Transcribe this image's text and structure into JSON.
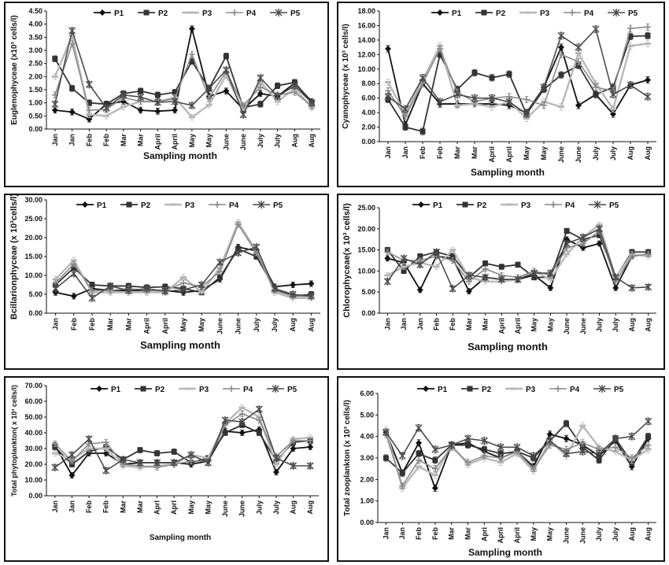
{
  "legend": [
    "P1",
    "P2",
    "P3",
    "P4",
    "P5"
  ],
  "series_colors": [
    "#111111",
    "#333333",
    "#b8b8b8",
    "#8a8a8a",
    "#4a4a4a"
  ],
  "chart_data": [
    {
      "id": "euglenophyceae",
      "type": "line",
      "ylabel": "Euglenophyceae (x10³ cells/l)",
      "xlabel": "Sampling month",
      "ylim": [
        0,
        4.5
      ],
      "yticks": [
        "0.00",
        "0.50",
        "1.00",
        "1.50",
        "2.00",
        "2.50",
        "3.00",
        "3.50",
        "4.00",
        "4.50"
      ],
      "categories": [
        "Jan",
        "Jan",
        "Feb",
        "Feb",
        "Mar",
        "Mar",
        "April",
        "April",
        "May",
        "May",
        "June",
        "June",
        "July",
        "July",
        "Aug",
        "Aug"
      ],
      "series": [
        {
          "name": "P1",
          "values": [
            0.72,
            0.65,
            0.38,
            0.95,
            1.05,
            0.72,
            0.68,
            0.72,
            3.82,
            1.25,
            1.45,
            0.75,
            1.35,
            1.25,
            1.75,
            1.05
          ]
        },
        {
          "name": "P2",
          "values": [
            2.68,
            1.55,
            1.0,
            0.95,
            1.35,
            1.45,
            1.3,
            1.4,
            2.58,
            1.55,
            2.78,
            0.82,
            0.95,
            1.65,
            1.78,
            1.0
          ]
        },
        {
          "name": "P3",
          "values": [
            2.0,
            3.55,
            0.55,
            0.5,
            0.85,
            1.05,
            1.05,
            1.2,
            0.45,
            0.92,
            2.05,
            0.7,
            1.8,
            1.05,
            1.55,
            0.82
          ]
        },
        {
          "name": "P4",
          "values": [
            1.3,
            3.25,
            0.72,
            0.75,
            1.2,
            1.05,
            1.05,
            1.15,
            2.85,
            1.18,
            2.2,
            0.9,
            1.6,
            1.3,
            1.4,
            0.88
          ]
        },
        {
          "name": "P5",
          "values": [
            0.95,
            3.75,
            1.7,
            0.8,
            1.3,
            1.22,
            1.02,
            1.05,
            0.9,
            1.55,
            2.25,
            0.55,
            1.95,
            1.25,
            1.65,
            1.0
          ]
        }
      ]
    },
    {
      "id": "cyanophyceae",
      "type": "line",
      "ylabel": "Cyanophyceae (x 10³ cells/l)",
      "xlabel": "Sampling month",
      "ylim": [
        0,
        18
      ],
      "yticks": [
        "0.00",
        "2.00",
        "4.00",
        "6.00",
        "8.00",
        "10.00",
        "12.00",
        "14.00",
        "16.00",
        "18.00"
      ],
      "categories": [
        "Jan",
        "Jan",
        "Feb",
        "Feb",
        "Mar",
        "Mar",
        "April",
        "April",
        "May",
        "May",
        "June",
        "June",
        "July",
        "July",
        "Aug",
        "Aug"
      ],
      "series": [
        {
          "name": "P1",
          "values": [
            12.8,
            2.3,
            8.0,
            5.2,
            5.2,
            5.2,
            5.2,
            5.0,
            4.0,
            7.5,
            13.0,
            5.0,
            6.5,
            3.8,
            7.8,
            8.5
          ]
        },
        {
          "name": "P2",
          "values": [
            5.8,
            2.0,
            1.4,
            12.0,
            7.2,
            9.5,
            8.8,
            9.3,
            3.8,
            7.2,
            9.2,
            10.5,
            6.5,
            7.5,
            14.5,
            14.6
          ]
        },
        {
          "name": "P3",
          "values": [
            8.2,
            3.8,
            8.5,
            13.2,
            5.0,
            5.2,
            4.8,
            5.5,
            3.2,
            5.5,
            4.8,
            12.2,
            8.0,
            4.5,
            13.2,
            13.5
          ]
        },
        {
          "name": "P4",
          "values": [
            7.0,
            3.5,
            8.0,
            12.8,
            6.8,
            5.5,
            6.0,
            6.2,
            5.8,
            5.0,
            12.0,
            11.0,
            7.5,
            7.0,
            15.6,
            15.8
          ]
        },
        {
          "name": "P5",
          "values": [
            6.2,
            4.5,
            8.8,
            5.5,
            6.5,
            6.0,
            6.0,
            5.5,
            3.8,
            7.5,
            14.6,
            13.0,
            15.5,
            6.5,
            7.8,
            6.2
          ]
        }
      ]
    },
    {
      "id": "bacillariophyceae",
      "type": "line",
      "ylabel": "Bcillarionphyceae (x 10³cells/l)",
      "xlabel": "Sampling month",
      "ylim": [
        0,
        30
      ],
      "yticks": [
        "0.00",
        "5.00",
        "10.00",
        "15.00",
        "20.00",
        "25.00",
        "30.00"
      ],
      "categories": [
        "Jan",
        "Feb",
        "Feb",
        "Mar",
        "Mar",
        "April",
        "April",
        "May",
        "May",
        "June",
        "June",
        "July",
        "July",
        "Aug",
        "Aug"
      ],
      "series": [
        {
          "name": "P1",
          "values": [
            5.5,
            4.5,
            6.5,
            6.0,
            6.0,
            6.0,
            6.0,
            5.5,
            6.0,
            9.0,
            17.5,
            16.5,
            7.0,
            7.5,
            7.8
          ]
        },
        {
          "name": "P2",
          "values": [
            7.5,
            12.0,
            7.5,
            7.2,
            7.2,
            6.8,
            7.0,
            6.5,
            5.5,
            9.5,
            17.0,
            15.0,
            6.5,
            4.5,
            5.0
          ]
        },
        {
          "name": "P3",
          "values": [
            9.0,
            14.0,
            5.5,
            5.5,
            5.5,
            5.5,
            5.5,
            9.5,
            5.5,
            12.0,
            24.0,
            16.5,
            5.5,
            4.0,
            4.0
          ]
        },
        {
          "name": "P4",
          "values": [
            8.0,
            13.0,
            6.0,
            6.0,
            6.5,
            6.0,
            6.0,
            8.0,
            7.0,
            11.0,
            23.5,
            16.0,
            6.0,
            4.5,
            4.5
          ]
        },
        {
          "name": "P5",
          "values": [
            6.5,
            10.5,
            4.0,
            7.2,
            6.0,
            6.5,
            5.8,
            6.2,
            7.5,
            13.5,
            16.0,
            17.5,
            6.5,
            5.0,
            4.5
          ]
        }
      ]
    },
    {
      "id": "chlorophyceae",
      "type": "line",
      "ylabel": "Chlorophyceae(x 10³ cells/l)",
      "xlabel": "Sampling month",
      "ylim": [
        0,
        25
      ],
      "yticks": [
        "0.00",
        "5.00",
        "10.00",
        "15.00",
        "20.00",
        "25.00"
      ],
      "categories": [
        "Jan",
        "Jan",
        "Jan",
        "Feb",
        "Feb",
        "Mar",
        "Mar",
        "April",
        "April",
        "May",
        "May",
        "June",
        "June",
        "July",
        "July",
        "Aug",
        "Aug"
      ],
      "series": [
        {
          "name": "P1",
          "values": [
            13.0,
            12.0,
            5.5,
            13.5,
            13.0,
            5.2,
            8.5,
            8.0,
            8.0,
            9.0,
            6.0,
            17.5,
            15.5,
            16.5,
            6.0,
            13.5,
            14.0
          ]
        },
        {
          "name": "P2",
          "values": [
            15.0,
            10.0,
            13.5,
            14.5,
            13.5,
            8.5,
            11.8,
            11.0,
            11.5,
            8.5,
            8.5,
            19.5,
            17.5,
            18.5,
            8.5,
            14.5,
            14.5
          ]
        },
        {
          "name": "P3",
          "values": [
            9.0,
            11.0,
            12.0,
            11.0,
            15.0,
            8.5,
            7.5,
            7.5,
            8.0,
            10.0,
            8.0,
            14.0,
            18.0,
            21.0,
            8.5,
            14.0,
            13.5
          ]
        },
        {
          "name": "P4",
          "values": [
            14.5,
            12.5,
            12.5,
            13.5,
            12.5,
            7.5,
            10.5,
            9.0,
            8.5,
            10.0,
            9.0,
            15.5,
            16.5,
            19.5,
            7.5,
            13.5,
            14.0
          ]
        },
        {
          "name": "P5",
          "values": [
            7.5,
            13.0,
            11.5,
            14.5,
            5.8,
            9.0,
            8.5,
            8.0,
            8.0,
            9.5,
            9.5,
            16.5,
            18.0,
            20.0,
            8.5,
            6.0,
            6.2
          ]
        }
      ]
    },
    {
      "id": "total_phytoplankton",
      "type": "line",
      "ylabel": "Total phytoplankton( x 10³ cells/l)",
      "xlabel": "Sampling month",
      "ylim": [
        0,
        70
      ],
      "yticks": [
        "0.00",
        "10.00",
        "20.00",
        "30.00",
        "40.00",
        "50.00",
        "60.00",
        "70.00"
      ],
      "categories": [
        "Jan",
        "Jan",
        "Feb",
        "Feb",
        "Mar",
        "Mar",
        "Aprl",
        "Aprl",
        "May",
        "May",
        "June",
        "June",
        "July",
        "July",
        "Aug",
        "Aug"
      ],
      "series": [
        {
          "name": "P1",
          "values": [
            32,
            13,
            27,
            27,
            20,
            21,
            21,
            21,
            20,
            22,
            41,
            40,
            42,
            15,
            30,
            31
          ]
        },
        {
          "name": "P2",
          "values": [
            31,
            20,
            28,
            31,
            23,
            29,
            27,
            28,
            21,
            24,
            40,
            45,
            40,
            22,
            34,
            35
          ]
        },
        {
          "name": "P3",
          "values": [
            27,
            23,
            30,
            30,
            19,
            18,
            19,
            20,
            26,
            24,
            46,
            56,
            50,
            20,
            36,
            37
          ]
        },
        {
          "name": "P4",
          "values": [
            33,
            22,
            33,
            34,
            20,
            19,
            18,
            20,
            22,
            22,
            45,
            52,
            48,
            25,
            35,
            35
          ]
        },
        {
          "name": "P5",
          "values": [
            18,
            26,
            36,
            16,
            23,
            21,
            21,
            21,
            26,
            21,
            48,
            47,
            55,
            24,
            19,
            19
          ]
        }
      ]
    },
    {
      "id": "total_zooplankton",
      "type": "line",
      "ylabel": "Total zooplankton (x 10³ cells/l)",
      "xlabel": "Sampling month",
      "ylim": [
        0,
        6
      ],
      "yticks": [
        "0.00",
        "1.00",
        "2.00",
        "3.00",
        "4.00",
        "5.00",
        "6.00"
      ],
      "categories": [
        "Jan",
        "Jan",
        "Feb",
        "Feb",
        "Mar",
        "Mar",
        "Apri",
        "April",
        "April",
        "May",
        "May",
        "June",
        "June",
        "July",
        "July",
        "Aug",
        "Aug"
      ],
      "series": [
        {
          "name": "P1",
          "values": [
            4.2,
            2.3,
            3.7,
            1.6,
            3.6,
            3.7,
            3.3,
            3.0,
            3.3,
            2.6,
            4.1,
            3.9,
            3.6,
            3.1,
            3.8,
            2.6,
            3.9
          ]
        },
        {
          "name": "P2",
          "values": [
            3.0,
            2.3,
            3.2,
            2.9,
            3.6,
            3.6,
            3.4,
            3.2,
            3.3,
            3.0,
            3.8,
            4.6,
            3.5,
            2.9,
            3.9,
            2.8,
            4.0
          ]
        },
        {
          "name": "P3",
          "values": [
            4.3,
            1.6,
            2.6,
            2.2,
            3.6,
            2.7,
            3.0,
            2.8,
            3.2,
            2.4,
            3.8,
            3.1,
            4.5,
            3.5,
            3.3,
            2.9,
            3.4
          ]
        },
        {
          "name": "P4",
          "values": [
            4.1,
            1.7,
            2.9,
            2.5,
            3.5,
            2.8,
            3.1,
            3.0,
            3.3,
            2.5,
            3.6,
            3.4,
            3.7,
            3.4,
            3.5,
            3.0,
            3.6
          ]
        },
        {
          "name": "P5",
          "values": [
            4.2,
            3.1,
            4.4,
            3.4,
            3.6,
            3.9,
            3.8,
            3.5,
            3.5,
            3.1,
            3.8,
            3.2,
            3.3,
            3.2,
            3.9,
            4.0,
            4.7
          ]
        }
      ]
    }
  ]
}
